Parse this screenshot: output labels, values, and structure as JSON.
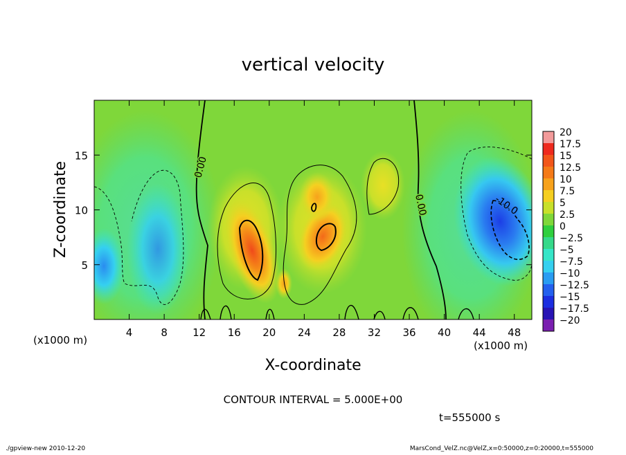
{
  "chart_data": {
    "type": "heatmap",
    "title": "vertical velocity",
    "xlabel": "X-coordinate",
    "ylabel": "Z-coordinate",
    "x_unit_note": "(x1000 m)",
    "xlim": [
      0,
      50
    ],
    "ylim": [
      0,
      20
    ],
    "x_ticks": [
      4,
      8,
      12,
      16,
      20,
      24,
      28,
      32,
      36,
      40,
      44,
      48
    ],
    "y_ticks": [
      5,
      10,
      15
    ],
    "contour_interval_text": "CONTOUR INTERVAL = 5.000E+00",
    "contour_labels": [
      "0.00",
      "0.00",
      "-10.0"
    ],
    "time_label": "t=555000 s",
    "footer_left": "./gpview-new   2010-12-20",
    "footer_right": "MarsCond_VelZ.nc@VelZ,x=0:50000,z=0:20000,t=555000",
    "colorbar": {
      "levels": [
        "20",
        "17.5",
        "15",
        "12.5",
        "10",
        "7.5",
        "5",
        "2.5",
        "0",
        "-2.5",
        "-5",
        "-7.5",
        "-10",
        "-12.5",
        "-15",
        "-17.5",
        "-20"
      ],
      "colors": [
        "#f29a9a",
        "#ee2a1e",
        "#f2561a",
        "#f57a18",
        "#f7a21c",
        "#f5cf21",
        "#c8e02a",
        "#7fd73a",
        "#2fcf3e",
        "#35d98a",
        "#36e6c8",
        "#35d0f0",
        "#2a9cf2",
        "#2460ee",
        "#1c2ee0",
        "#2814b4",
        "#7a1fb0"
      ]
    },
    "features": [
      {
        "x": 18.5,
        "z": 7.5,
        "w": 12.5,
        "kind": "updraft-max"
      },
      {
        "x": 26.5,
        "z": 8.5,
        "w": 10,
        "kind": "updraft"
      },
      {
        "x": 25.5,
        "z": 12.5,
        "w": 6,
        "kind": "updraft"
      },
      {
        "x": 34,
        "z": 13,
        "w": 3,
        "kind": "updraft-weak"
      },
      {
        "x": 46.5,
        "z": 8,
        "w": -12,
        "kind": "downdraft"
      },
      {
        "x": 1.5,
        "z": 5,
        "w": -8,
        "kind": "downdraft"
      },
      {
        "x": 8,
        "z": 6,
        "w": -7,
        "kind": "downdraft"
      }
    ]
  }
}
